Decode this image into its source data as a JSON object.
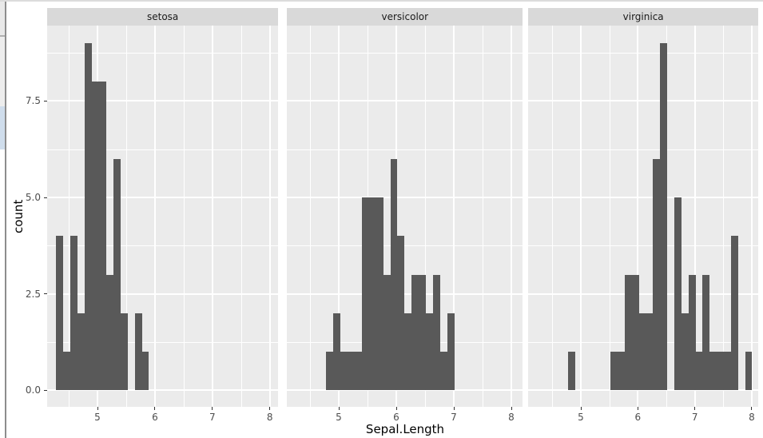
{
  "figure": {
    "x_title": "Sepal.Length",
    "y_title": "count"
  },
  "chart_data": {
    "type": "bar",
    "subtype": "faceted-histogram",
    "title": "",
    "xlabel": "Sepal.Length",
    "ylabel": "count",
    "facet_labels": [
      "setosa",
      "versicolor",
      "virginica"
    ],
    "bin_start": 4.283,
    "bin_width": 0.1241,
    "x_domain": [
      4.1,
      8.19
    ],
    "y_domain": [
      -0.45,
      9.45
    ],
    "x_tick_values": [
      5,
      6,
      7,
      8
    ],
    "x_tick_labels": [
      "5",
      "6",
      "7",
      "8"
    ],
    "x_minor_values": [
      4.5,
      5.5,
      6.5,
      7.5
    ],
    "y_tick_values": [
      0,
      2.5,
      5,
      7.5
    ],
    "y_tick_labels": [
      "0.0",
      "2.5",
      "5.0",
      "7.5"
    ],
    "y_minor_values": [
      1.25,
      3.75,
      6.25,
      8.75
    ],
    "grid": true,
    "legend": "none",
    "series": [
      {
        "name": "setosa",
        "counts": [
          4,
          1,
          4,
          2,
          9,
          8,
          8,
          3,
          6,
          2,
          0,
          2,
          1,
          0,
          0,
          0,
          0,
          0,
          0,
          0,
          0,
          0,
          0,
          0,
          0,
          0,
          0,
          0,
          0,
          0
        ]
      },
      {
        "name": "versicolor",
        "counts": [
          0,
          0,
          0,
          0,
          1,
          2,
          1,
          1,
          1,
          5,
          5,
          5,
          3,
          6,
          4,
          2,
          3,
          3,
          2,
          3,
          1,
          2,
          0,
          0,
          0,
          0,
          0,
          0,
          0,
          0
        ]
      },
      {
        "name": "virginica",
        "counts": [
          0,
          0,
          0,
          0,
          1,
          0,
          0,
          0,
          0,
          0,
          1,
          1,
          3,
          3,
          2,
          2,
          6,
          9,
          0,
          5,
          2,
          3,
          1,
          3,
          1,
          1,
          1,
          4,
          0,
          1
        ]
      }
    ]
  },
  "colors": {
    "panel_bg": "#ebebeb",
    "strip_bg": "#d9d9d9",
    "bar_fill": "#595959",
    "gridline": "#ffffff",
    "tick_text": "#4d4d4d",
    "strip_text": "#1a1a1a",
    "axis_title_text": "#000000",
    "tick_mark": "#333333",
    "chrome_border": "#8d8d8d",
    "chrome_scrollbar_thumb": "#cfddec"
  }
}
